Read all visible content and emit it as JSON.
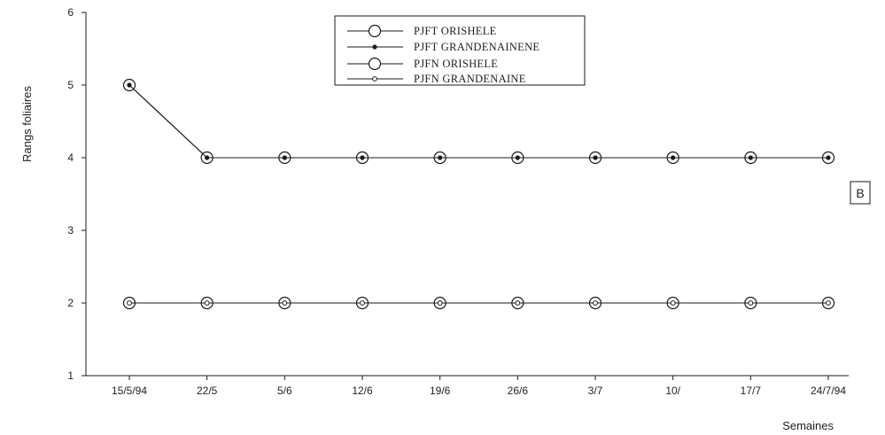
{
  "chart_data": {
    "type": "line",
    "xlabel": "Semaines",
    "ylabel": "Rangs foliaires",
    "categories": [
      "15/5/94",
      "22/5",
      "5/6",
      "12/6",
      "19/6",
      "26/6",
      "3/7",
      "10/",
      "17/7",
      "24/7/94"
    ],
    "ylim": [
      1,
      6
    ],
    "yticks": [
      "1",
      "2",
      "3",
      "4",
      "5",
      "6"
    ],
    "grid": false,
    "legend_position": "top-center",
    "panel_label": "B",
    "series": [
      {
        "name": "PJFT ORISHELE",
        "marker": "open-circle",
        "values": [
          5,
          4,
          4,
          4,
          4,
          4,
          4,
          4,
          4,
          4
        ]
      },
      {
        "name": "PJFT GRANDENAINENE",
        "marker": "filled-dot",
        "values": [
          5,
          4,
          4,
          4,
          4,
          4,
          4,
          4,
          4,
          4
        ]
      },
      {
        "name": "PJFN ORISHELE",
        "marker": "open-circle",
        "values": [
          2,
          2,
          2,
          2,
          2,
          2,
          2,
          2,
          2,
          2
        ]
      },
      {
        "name": "PJFN GRANDENAINE",
        "marker": "small-open-dot",
        "values": [
          2,
          2,
          2,
          2,
          2,
          2,
          2,
          2,
          2,
          2
        ]
      }
    ],
    "colors": {
      "line": "#1a1a1a",
      "text": "#222222",
      "background": "#ffffff"
    }
  }
}
